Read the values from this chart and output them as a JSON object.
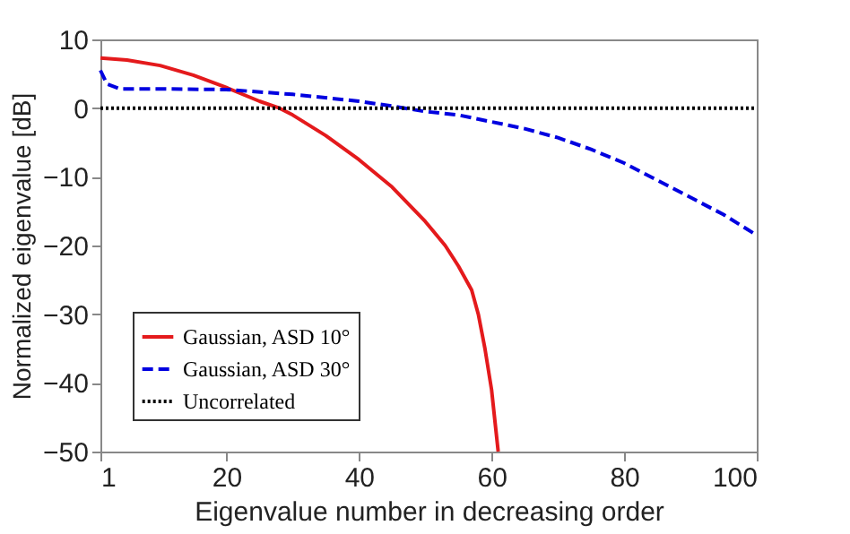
{
  "chart_data": {
    "type": "line",
    "xlabel": "Eigenvalue number in decreasing order",
    "ylabel": "Normalized eigenvalue [dB]",
    "xlim": [
      1,
      100
    ],
    "xticks": [
      1,
      20,
      40,
      60,
      80,
      100
    ],
    "ylim": [
      -50,
      10
    ],
    "yticks": [
      -50,
      -40,
      -30,
      -20,
      -10,
      0,
      10
    ],
    "grid": false,
    "legend": "bottom left",
    "marker": "none",
    "series": [
      {
        "name": "Gaussian, ASD 10°",
        "color": "#e41a1c",
        "line_style": "solid",
        "x": [
          1,
          5,
          10,
          15,
          20,
          25,
          28,
          30,
          35,
          40,
          45,
          50,
          53,
          55,
          57,
          58,
          59,
          60,
          61
        ],
        "values": [
          7.3,
          7,
          6.2,
          4.8,
          3,
          1,
          0,
          -1,
          -4,
          -7.5,
          -11.5,
          -16.5,
          -20,
          -23,
          -26.5,
          -30,
          -35,
          -41,
          -50
        ]
      },
      {
        "name": "Gaussian, ASD 30°",
        "color": "#0000e0",
        "line_style": "dashed",
        "x": [
          1,
          2,
          4,
          10,
          20,
          30,
          40,
          45,
          50,
          55,
          60,
          65,
          70,
          75,
          80,
          85,
          90,
          95,
          100
        ],
        "values": [
          5.5,
          3.5,
          2.8,
          2.8,
          2.7,
          2,
          1,
          0.3,
          -0.5,
          -1,
          -2,
          -3,
          -4.3,
          -6,
          -8,
          -10.5,
          -13,
          -15.5,
          -18.5
        ]
      },
      {
        "name": "Uncorrelated",
        "color": "#000000",
        "line_style": "dotted",
        "x": [
          1,
          100
        ],
        "values": [
          0,
          0
        ]
      }
    ]
  }
}
